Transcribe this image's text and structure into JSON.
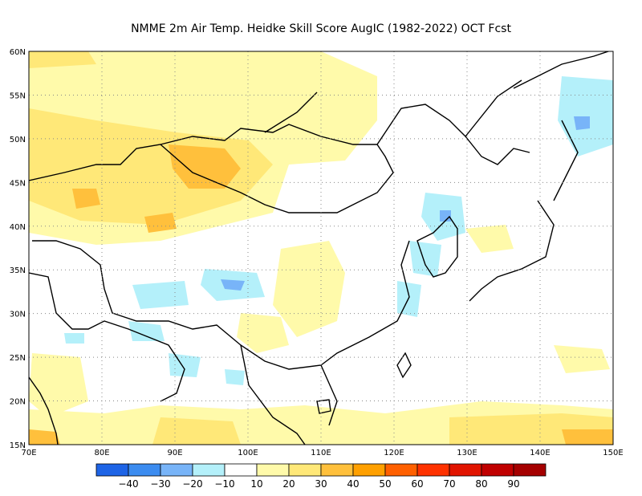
{
  "title": "NMME  2m Air Temp. Heidke Skill Score AugIC (1982-2022) OCT Fcst",
  "map": {
    "lon_labels": [
      "70E",
      "80E",
      "90E",
      "100E",
      "110E",
      "120E",
      "130E",
      "140E",
      "150E"
    ],
    "lat_labels": [
      "15N",
      "20N",
      "25N",
      "30N",
      "35N",
      "40N",
      "45N",
      "50N",
      "55N",
      "60N"
    ],
    "lon_range": [
      70,
      150
    ],
    "lat_range": [
      15,
      60
    ],
    "gridlines": "dotted"
  },
  "colorbar": {
    "labels": [
      "−40",
      "−30",
      "−20",
      "−10",
      "10",
      "20",
      "30",
      "40",
      "50",
      "60",
      "70",
      "80",
      "90"
    ],
    "colors": [
      "#1e64e6",
      "#3c8cf0",
      "#78b4f8",
      "#b4f0fa",
      "#ffffff",
      "#fffaaa",
      "#ffe878",
      "#ffc03c",
      "#ffa000",
      "#ff6000",
      "#ff3200",
      "#e11400",
      "#c00000",
      "#a50000"
    ]
  }
}
